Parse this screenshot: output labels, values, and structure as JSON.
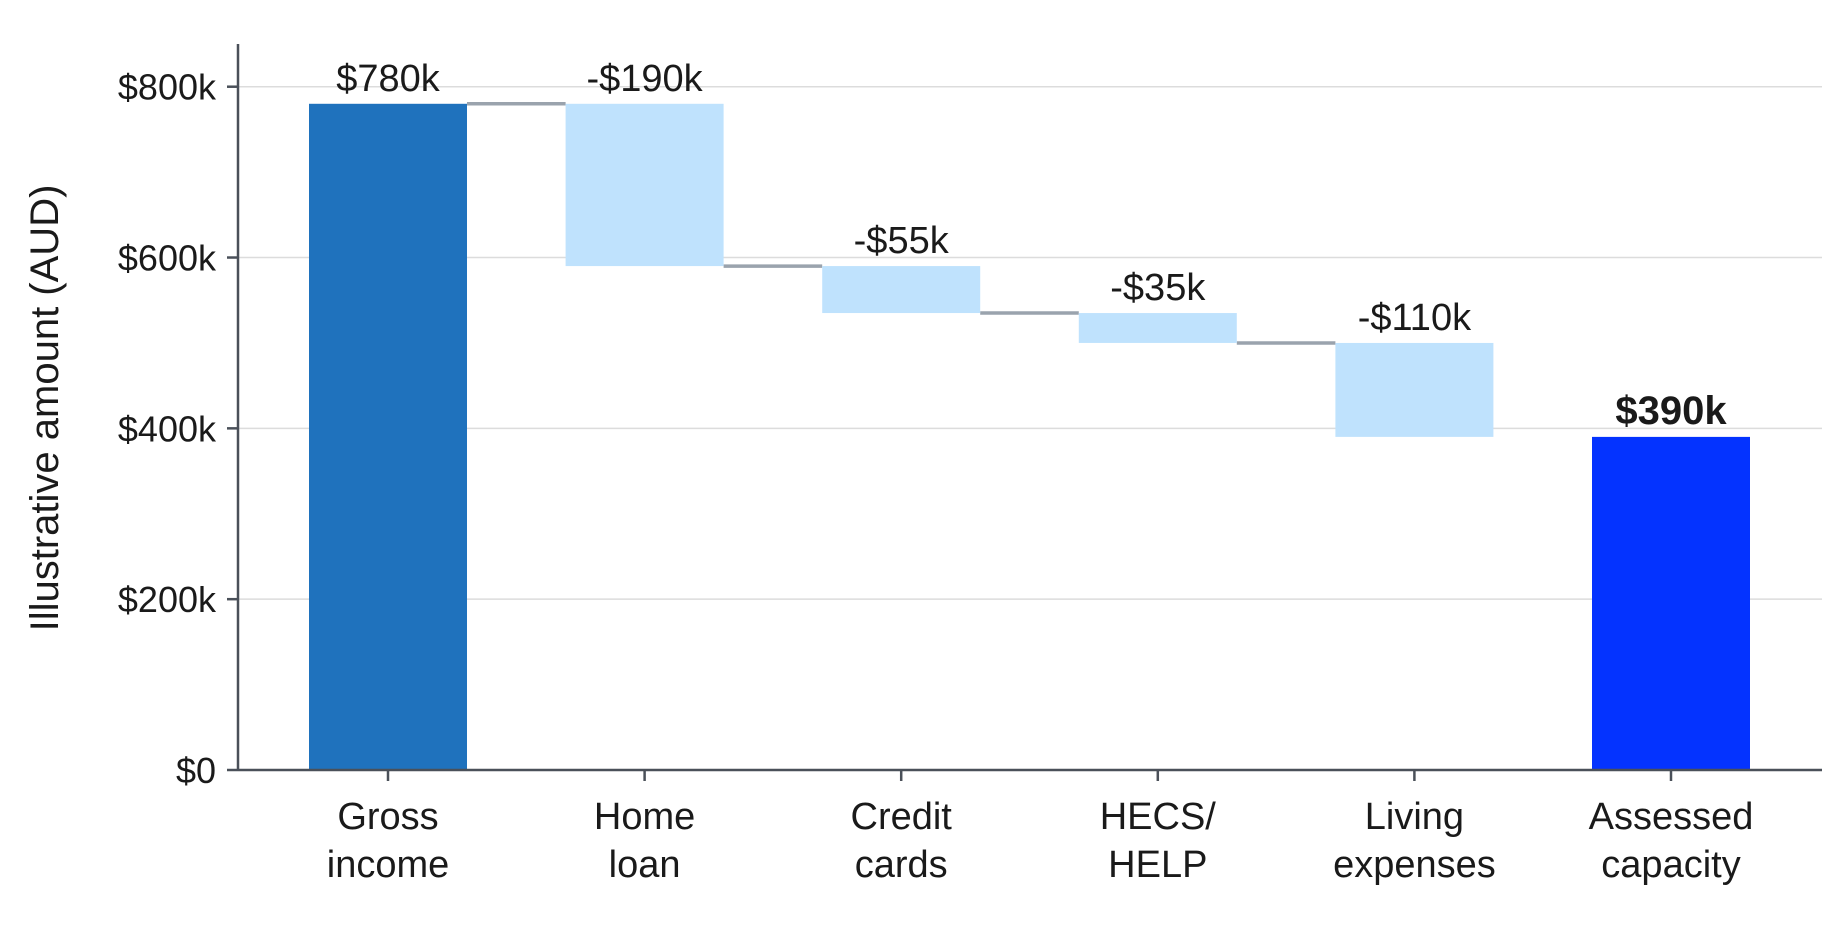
{
  "chart_data": {
    "type": "bar",
    "subtype": "waterfall",
    "title": "",
    "xlabel": "",
    "ylabel": "Illustrative amount (AUD)",
    "ylim": [
      0,
      850000
    ],
    "yticks": [
      0,
      200000,
      400000,
      600000,
      800000
    ],
    "ytick_labels": [
      "$0",
      "$200k",
      "$400k",
      "$600k",
      "$800k"
    ],
    "grid": true,
    "legend": "none",
    "categories": [
      "Gross\nincome",
      "Home\nloan",
      "Credit\ncards",
      "HECS/\nHELP",
      "Living\nexpenses",
      "Assessed\ncapacity"
    ],
    "steps": [
      {
        "label": "Gross\nincome",
        "kind": "total",
        "value": 780000,
        "display": "$780k"
      },
      {
        "label": "Home\nloan",
        "kind": "delta",
        "value": -190000,
        "display": "-$190k"
      },
      {
        "label": "Credit\ncards",
        "kind": "delta",
        "value": -55000,
        "display": "-$55k"
      },
      {
        "label": "HECS/\nHELP",
        "kind": "delta",
        "value": -35000,
        "display": "-$35k"
      },
      {
        "label": "Living\nexpenses",
        "kind": "delta",
        "value": -110000,
        "display": "-$110k"
      },
      {
        "label": "Assessed\ncapacity",
        "kind": "result",
        "value": 390000,
        "display": "$390k"
      }
    ],
    "colors": {
      "total": "#1f72bd",
      "delta": "#bfe2fd",
      "result": "#0433ff",
      "connector": "#9aa3ad",
      "grid": "#dcdcdc",
      "axis": "#4a5059",
      "text": "#1a1a1a"
    }
  }
}
